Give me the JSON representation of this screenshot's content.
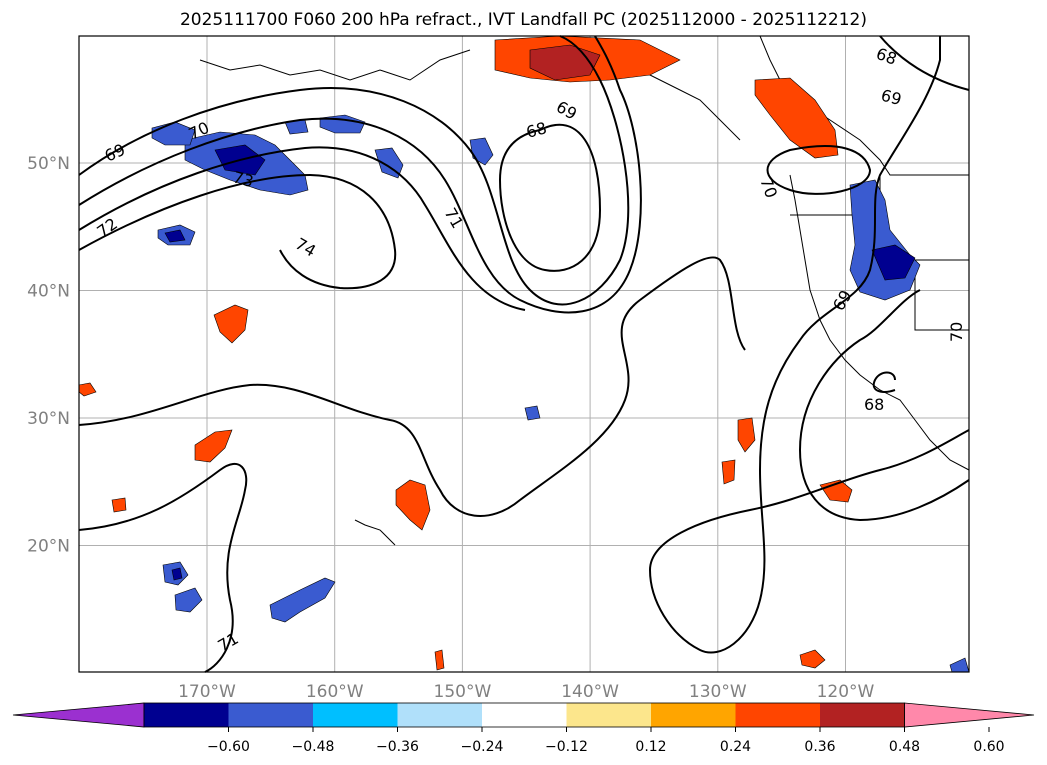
{
  "title": "2025111700 F060 200 hPa refract., IVT Landfall PC (2025112000 - 2025112212)",
  "latitudes": [
    {
      "label": "50°N",
      "value": 50
    },
    {
      "label": "40°N",
      "value": 40
    },
    {
      "label": "30°N",
      "value": 30
    },
    {
      "label": "20°N",
      "value": 20
    }
  ],
  "longitudes": [
    {
      "label": "170°W",
      "value": -170
    },
    {
      "label": "160°W",
      "value": -160
    },
    {
      "label": "150°W",
      "value": -150
    },
    {
      "label": "140°W",
      "value": -140
    },
    {
      "label": "130°W",
      "value": -130
    },
    {
      "label": "120°W",
      "value": -120
    }
  ],
  "colorbar": {
    "colors": [
      "#9b30d0",
      "#000090",
      "#3a5bd0",
      "#00bfff",
      "#b0e0fa",
      "#ffffff",
      "#fce68c",
      "#ffa500",
      "#ff4500",
      "#b22222",
      "#ff88aa"
    ],
    "ticks": [
      "−0.60",
      "−0.48",
      "−0.36",
      "−0.24",
      "−0.12",
      "0.12",
      "0.24",
      "0.36",
      "0.48",
      "0.60"
    ]
  },
  "contour_labels": [
    "68",
    "69",
    "70",
    "71",
    "72",
    "73",
    "74"
  ]
}
